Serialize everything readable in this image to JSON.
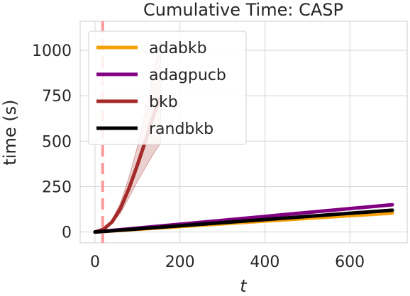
{
  "chart_data": {
    "type": "line",
    "title": "Cumulative Time: CASP",
    "xlabel": "t",
    "ylabel": "time (s)",
    "xlim": [
      -35,
      735
    ],
    "ylim": [
      -60,
      1160
    ],
    "xticks": [
      0,
      200,
      400,
      600
    ],
    "yticks": [
      0,
      250,
      500,
      750,
      1000
    ],
    "grid": true,
    "legend_placement": "upper-left",
    "vline": {
      "x": 18,
      "color": "#ff9a9a",
      "style": "dashed"
    },
    "series": [
      {
        "name": "adabkb",
        "color": "#f5a10a",
        "x": [
          0,
          700
        ],
        "y": [
          0,
          105
        ],
        "band_low": [
          0,
          95
        ],
        "band_high": [
          0,
          113
        ]
      },
      {
        "name": "adagpucb",
        "color": "#800080",
        "x": [
          0,
          700
        ],
        "y": [
          0,
          150
        ],
        "band_low": [
          0,
          145
        ],
        "band_high": [
          0,
          155
        ]
      },
      {
        "name": "bkb",
        "color": "#a52a2a",
        "x": [
          0,
          20,
          40,
          60,
          80,
          100,
          120,
          140,
          155
        ],
        "y": [
          0,
          15,
          55,
          130,
          240,
          370,
          510,
          660,
          740
        ],
        "band_low": [
          0,
          12,
          45,
          105,
          190,
          280,
          360,
          440,
          490
        ],
        "band_high": [
          0,
          18,
          65,
          160,
          300,
          470,
          680,
          900,
          1060
        ]
      },
      {
        "name": "randbkb",
        "color": "#000000",
        "x": [
          0,
          700
        ],
        "y": [
          0,
          120
        ],
        "band_low": [
          0,
          115
        ],
        "band_high": [
          0,
          125
        ]
      }
    ]
  }
}
